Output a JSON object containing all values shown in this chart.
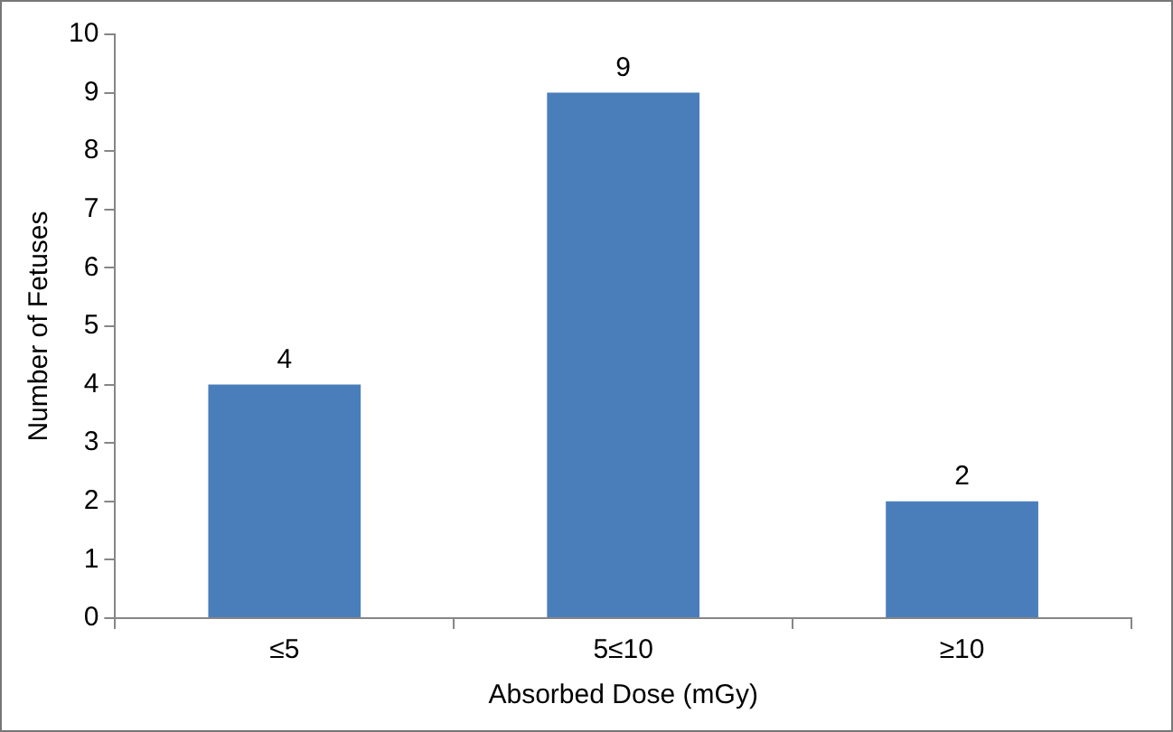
{
  "chart_data": {
    "type": "bar",
    "xlabel": "Absorbed Dose (mGy)",
    "ylabel": "Number of Fetuses",
    "categories": [
      "≤5",
      "5≤10",
      "≥10"
    ],
    "values": [
      4,
      9,
      2
    ],
    "color": "#4a7ebb",
    "ylim": [
      0,
      10
    ],
    "yticks": [
      0,
      1,
      2,
      3,
      4,
      5,
      6,
      7,
      8,
      9,
      10
    ],
    "grid": false,
    "legend": false,
    "data_labels": true
  }
}
